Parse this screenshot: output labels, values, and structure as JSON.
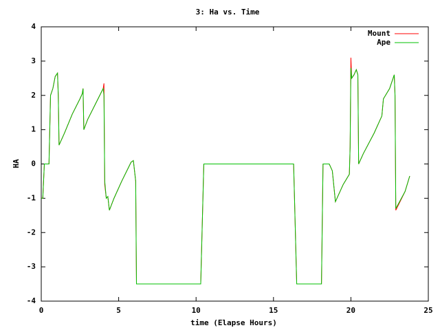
{
  "chart_data": {
    "type": "line",
    "title": "3: Ha vs. Time",
    "x_label": "time (Elapse Hours)",
    "y_label": "HA",
    "x": [
      0,
      0.1,
      0.15,
      0.2,
      0.5,
      0.6,
      0.75,
      0.9,
      1.05,
      1.1,
      1.15,
      1.5,
      2.0,
      2.5,
      2.65,
      2.7,
      2.75,
      3.0,
      3.5,
      4.0,
      4.05,
      4.1,
      4.2,
      4.3,
      4.4,
      4.7,
      5.2,
      5.8,
      5.95,
      6.1,
      6.15,
      10.3,
      10.5,
      16.3,
      16.5,
      18.1,
      18.2,
      18.6,
      18.8,
      19.0,
      19.5,
      19.9,
      19.95,
      20.0,
      20.05,
      20.2,
      20.35,
      20.45,
      20.5,
      20.8,
      21.5,
      22.0,
      22.1,
      22.5,
      22.8,
      22.85,
      22.9,
      23.5,
      23.8
    ],
    "series": [
      {
        "name": "Mount",
        "color": "#ff0000",
        "values": [
          -1,
          -1,
          -0.5,
          0,
          0,
          2.0,
          2.2,
          2.55,
          2.65,
          2.0,
          0.55,
          0.9,
          1.45,
          1.9,
          2.05,
          2.2,
          1.0,
          1.3,
          1.75,
          2.2,
          2.35,
          -0.6,
          -1.0,
          -0.95,
          -1.35,
          -1.0,
          -0.5,
          0.05,
          0.1,
          -0.5,
          -3.5,
          -3.5,
          0,
          0,
          -3.5,
          -3.5,
          0,
          0,
          -0.2,
          -1.1,
          -0.6,
          -0.3,
          0.5,
          3.1,
          2.5,
          2.6,
          2.75,
          2.6,
          0,
          0.3,
          0.9,
          1.4,
          1.9,
          2.2,
          2.6,
          2.0,
          -1.35,
          -0.8,
          -0.35
        ]
      },
      {
        "name": "Ape",
        "color": "#00c000",
        "values": [
          -1,
          -1,
          -0.5,
          0,
          0,
          2.0,
          2.2,
          2.55,
          2.65,
          2.0,
          0.55,
          0.9,
          1.45,
          1.9,
          2.05,
          2.2,
          1.0,
          1.3,
          1.75,
          2.2,
          2.0,
          -0.5,
          -1.0,
          -0.95,
          -1.35,
          -1.0,
          -0.5,
          0.05,
          0.1,
          -0.5,
          -3.5,
          -3.5,
          0,
          0,
          -3.5,
          -3.5,
          0,
          0,
          -0.2,
          -1.1,
          -0.6,
          -0.3,
          0.5,
          2.8,
          2.5,
          2.6,
          2.75,
          2.6,
          0,
          0.3,
          0.9,
          1.4,
          1.9,
          2.2,
          2.6,
          2.0,
          -1.3,
          -0.8,
          -0.35
        ]
      }
    ],
    "xlim": [
      0,
      25
    ],
    "xticks": [
      0,
      5,
      10,
      15,
      20,
      25
    ],
    "ylim": [
      -4,
      4
    ],
    "yticks": [
      -4,
      -3,
      -2,
      -1,
      0,
      1,
      2,
      3,
      4
    ],
    "legend": "top-right"
  }
}
